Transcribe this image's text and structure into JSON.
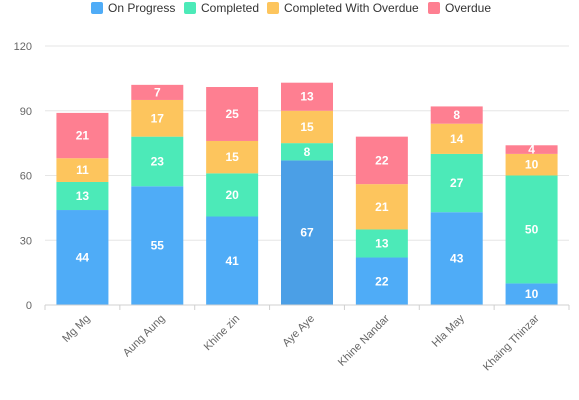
{
  "chart_data": {
    "type": "bar",
    "stacked": true,
    "title": "",
    "xlabel": "",
    "ylabel": "",
    "ylim": [
      0,
      120
    ],
    "yticks": [
      0,
      30,
      60,
      90,
      120
    ],
    "grid": true,
    "legend_position": "top",
    "categories": [
      "Mg Mg",
      "Aung Aung",
      "Khine zin",
      "Aye Aye",
      "Khine Nandar",
      "Hla May",
      "Khaing Thinzar"
    ],
    "series": [
      {
        "name": "On Progress",
        "color": "#4facf7",
        "values": [
          44,
          55,
          41,
          67,
          22,
          43,
          10
        ]
      },
      {
        "name": "Completed",
        "color": "#4ceab8",
        "values": [
          13,
          23,
          20,
          8,
          13,
          27,
          50
        ]
      },
      {
        "name": "Completed With Overdue",
        "color": "#fdc55d",
        "values": [
          11,
          17,
          15,
          15,
          21,
          14,
          10
        ]
      },
      {
        "name": "Overdue",
        "color": "#fe7f91",
        "values": [
          21,
          7,
          25,
          13,
          22,
          8,
          4
        ]
      }
    ]
  }
}
